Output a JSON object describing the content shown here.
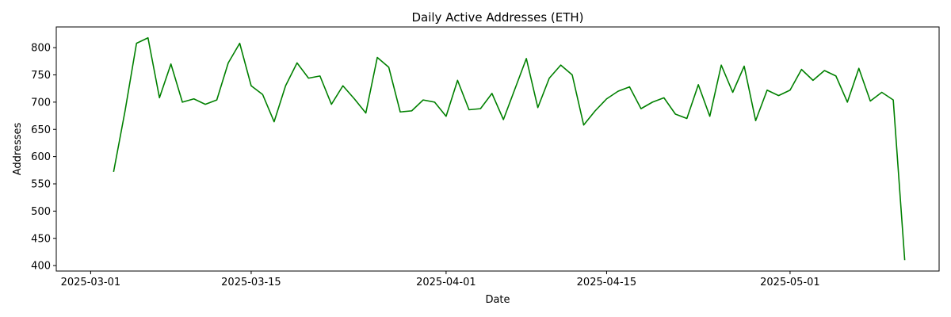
{
  "chart_data": {
    "type": "line",
    "title": "Daily Active Addresses (ETH)",
    "xlabel": "Date",
    "ylabel": "Addresses",
    "xlim": [
      "2025-02-26",
      "2025-05-14"
    ],
    "ylim": [
      390,
      838
    ],
    "x_ticks": [
      "2025-03-01",
      "2025-03-15",
      "2025-04-01",
      "2025-04-15",
      "2025-05-01"
    ],
    "y_ticks": [
      400,
      450,
      500,
      550,
      600,
      650,
      700,
      750,
      800
    ],
    "grid": false,
    "line_color": "#008000",
    "series": [
      {
        "x": [
          "2025-03-03",
          "2025-03-04",
          "2025-03-05",
          "2025-03-06",
          "2025-03-07",
          "2025-03-08",
          "2025-03-09",
          "2025-03-10",
          "2025-03-11",
          "2025-03-12",
          "2025-03-13",
          "2025-03-14",
          "2025-03-15",
          "2025-03-16",
          "2025-03-17",
          "2025-03-18",
          "2025-03-19",
          "2025-03-20",
          "2025-03-21",
          "2025-03-22",
          "2025-03-23",
          "2025-03-24",
          "2025-03-25",
          "2025-03-26",
          "2025-03-27",
          "2025-03-28",
          "2025-03-29",
          "2025-03-30",
          "2025-03-31",
          "2025-04-01",
          "2025-04-02",
          "2025-04-03",
          "2025-04-04",
          "2025-04-05",
          "2025-04-06",
          "2025-04-07",
          "2025-04-08",
          "2025-04-09",
          "2025-04-10",
          "2025-04-11",
          "2025-04-12",
          "2025-04-13",
          "2025-04-14",
          "2025-04-15",
          "2025-04-16",
          "2025-04-17",
          "2025-04-18",
          "2025-04-19",
          "2025-04-20",
          "2025-04-21",
          "2025-04-22",
          "2025-04-23",
          "2025-04-24",
          "2025-04-25",
          "2025-04-26",
          "2025-04-27",
          "2025-04-28",
          "2025-04-29",
          "2025-04-30",
          "2025-05-01",
          "2025-05-02",
          "2025-05-03",
          "2025-05-04",
          "2025-05-05",
          "2025-05-06",
          "2025-05-07",
          "2025-05-08",
          "2025-05-09",
          "2025-05-10",
          "2025-05-11"
        ],
        "values": [
          572,
          684,
          808,
          818,
          708,
          770,
          700,
          706,
          696,
          704,
          772,
          808,
          730,
          714,
          664,
          730,
          772,
          744,
          748,
          696,
          730,
          706,
          680,
          782,
          764,
          682,
          684,
          704,
          700,
          674,
          740,
          686,
          688,
          716,
          668,
          724,
          780,
          690,
          744,
          768,
          750,
          658,
          684,
          706,
          720,
          728,
          688,
          700,
          708,
          678,
          670,
          732,
          674,
          768,
          718,
          766,
          666,
          722,
          712,
          722,
          760,
          740,
          758,
          748,
          700,
          762,
          702,
          718,
          704,
          410
        ]
      }
    ]
  }
}
